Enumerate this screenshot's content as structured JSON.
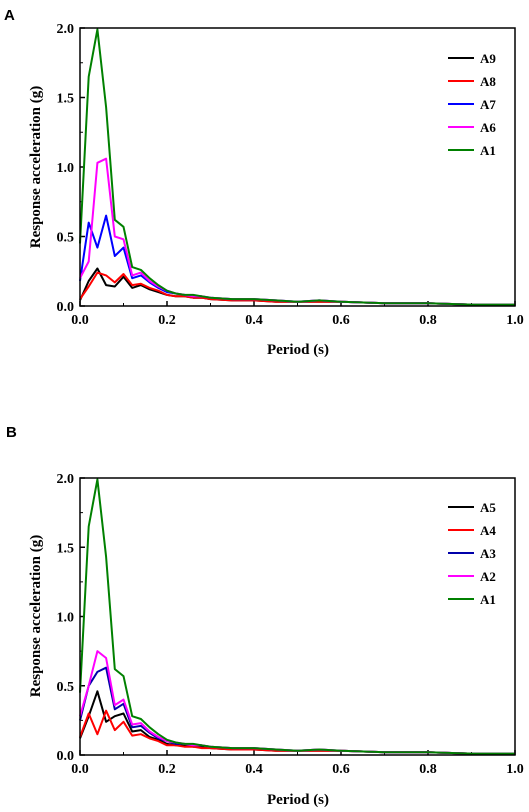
{
  "chart_data": [
    {
      "panel": "A",
      "type": "line",
      "xlabel": "Period (s)",
      "ylabel": "Response acceleration (g)",
      "xlim": [
        0,
        1.0
      ],
      "ylim": [
        0,
        2.0
      ],
      "xticks": [
        "0.0",
        "0.2",
        "0.4",
        "0.6",
        "0.8",
        "1.0"
      ],
      "yticks": [
        "0.0",
        "0.5",
        "1.0",
        "1.5",
        "2.0"
      ],
      "legend_position": "top-right",
      "grid": false,
      "x": [
        0,
        0.02,
        0.04,
        0.06,
        0.08,
        0.1,
        0.12,
        0.14,
        0.16,
        0.18,
        0.2,
        0.22,
        0.24,
        0.26,
        0.28,
        0.3,
        0.35,
        0.4,
        0.45,
        0.5,
        0.55,
        0.6,
        0.7,
        0.8,
        0.9,
        1.0
      ],
      "series": [
        {
          "name": "A9",
          "color": "#000000",
          "values": [
            0.04,
            0.18,
            0.27,
            0.15,
            0.14,
            0.21,
            0.13,
            0.15,
            0.12,
            0.1,
            0.08,
            0.07,
            0.07,
            0.06,
            0.06,
            0.05,
            0.04,
            0.04,
            0.03,
            0.03,
            0.03,
            0.03,
            0.02,
            0.02,
            0.01,
            0.01
          ]
        },
        {
          "name": "A8",
          "color": "#ff0000",
          "values": [
            0.05,
            0.14,
            0.24,
            0.22,
            0.17,
            0.23,
            0.15,
            0.16,
            0.13,
            0.11,
            0.08,
            0.07,
            0.07,
            0.06,
            0.06,
            0.05,
            0.04,
            0.04,
            0.03,
            0.03,
            0.03,
            0.03,
            0.02,
            0.02,
            0.01,
            0.01
          ]
        },
        {
          "name": "A7",
          "color": "#0000ff",
          "values": [
            0.18,
            0.6,
            0.42,
            0.65,
            0.36,
            0.42,
            0.2,
            0.22,
            0.17,
            0.13,
            0.1,
            0.09,
            0.08,
            0.07,
            0.07,
            0.06,
            0.05,
            0.05,
            0.04,
            0.03,
            0.04,
            0.03,
            0.02,
            0.02,
            0.01,
            0.01
          ]
        },
        {
          "name": "A6",
          "color": "#ff00ff",
          "values": [
            0.2,
            0.32,
            1.03,
            1.06,
            0.5,
            0.48,
            0.22,
            0.24,
            0.18,
            0.14,
            0.11,
            0.09,
            0.08,
            0.07,
            0.07,
            0.06,
            0.05,
            0.05,
            0.04,
            0.03,
            0.04,
            0.03,
            0.02,
            0.02,
            0.01,
            0.01
          ]
        },
        {
          "name": "A1",
          "color": "#008000",
          "values": [
            0.45,
            1.65,
            1.99,
            1.43,
            0.62,
            0.57,
            0.28,
            0.26,
            0.2,
            0.15,
            0.11,
            0.09,
            0.08,
            0.08,
            0.07,
            0.06,
            0.05,
            0.05,
            0.04,
            0.03,
            0.04,
            0.03,
            0.02,
            0.02,
            0.01,
            0.01
          ]
        }
      ]
    },
    {
      "panel": "B",
      "type": "line",
      "xlabel": "Period (s)",
      "ylabel": "Response acceleration (g)",
      "xlim": [
        0,
        1.0
      ],
      "ylim": [
        0,
        2.0
      ],
      "xticks": [
        "0.0",
        "0.2",
        "0.4",
        "0.6",
        "0.8",
        "1.0"
      ],
      "yticks": [
        "0.0",
        "0.5",
        "1.0",
        "1.5",
        "2.0"
      ],
      "legend_position": "top-right",
      "grid": false,
      "x": [
        0,
        0.02,
        0.04,
        0.06,
        0.08,
        0.1,
        0.12,
        0.14,
        0.16,
        0.18,
        0.2,
        0.22,
        0.24,
        0.26,
        0.28,
        0.3,
        0.35,
        0.4,
        0.45,
        0.5,
        0.55,
        0.6,
        0.7,
        0.8,
        0.9,
        1.0
      ],
      "series": [
        {
          "name": "A5",
          "color": "#000000",
          "values": [
            0.12,
            0.28,
            0.46,
            0.24,
            0.28,
            0.3,
            0.17,
            0.18,
            0.13,
            0.11,
            0.08,
            0.07,
            0.07,
            0.06,
            0.06,
            0.05,
            0.04,
            0.04,
            0.03,
            0.03,
            0.03,
            0.03,
            0.02,
            0.02,
            0.01,
            0.01
          ]
        },
        {
          "name": "A4",
          "color": "#ff0000",
          "values": [
            0.13,
            0.3,
            0.15,
            0.32,
            0.18,
            0.24,
            0.14,
            0.15,
            0.12,
            0.1,
            0.07,
            0.07,
            0.06,
            0.06,
            0.05,
            0.05,
            0.04,
            0.04,
            0.03,
            0.03,
            0.03,
            0.03,
            0.02,
            0.02,
            0.01,
            0.01
          ]
        },
        {
          "name": "A3",
          "color": "#0000aa",
          "values": [
            0.25,
            0.5,
            0.6,
            0.63,
            0.33,
            0.37,
            0.2,
            0.21,
            0.16,
            0.12,
            0.1,
            0.08,
            0.08,
            0.07,
            0.07,
            0.06,
            0.05,
            0.05,
            0.04,
            0.03,
            0.04,
            0.03,
            0.02,
            0.02,
            0.01,
            0.01
          ]
        },
        {
          "name": "A2",
          "color": "#ff00ff",
          "values": [
            0.28,
            0.5,
            0.75,
            0.7,
            0.36,
            0.4,
            0.22,
            0.23,
            0.17,
            0.13,
            0.1,
            0.09,
            0.08,
            0.07,
            0.07,
            0.06,
            0.05,
            0.05,
            0.04,
            0.03,
            0.04,
            0.03,
            0.02,
            0.02,
            0.01,
            0.01
          ]
        },
        {
          "name": "A1",
          "color": "#008000",
          "values": [
            0.45,
            1.65,
            1.99,
            1.43,
            0.62,
            0.57,
            0.28,
            0.26,
            0.2,
            0.15,
            0.11,
            0.09,
            0.08,
            0.08,
            0.07,
            0.06,
            0.05,
            0.05,
            0.04,
            0.03,
            0.04,
            0.03,
            0.02,
            0.02,
            0.01,
            0.01
          ]
        }
      ]
    }
  ]
}
